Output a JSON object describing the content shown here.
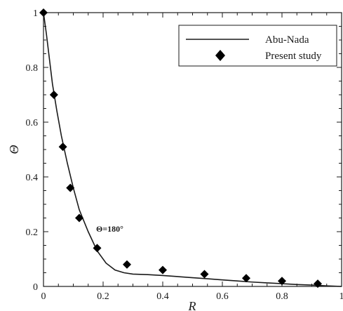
{
  "chart_data": {
    "type": "line",
    "xlabel": "R",
    "ylabel": "Θ",
    "xlim": [
      0,
      1
    ],
    "ylim": [
      0,
      1
    ],
    "x_ticks": [
      "0",
      "0.2",
      "0.4",
      "0.6",
      "0.8",
      "1"
    ],
    "y_ticks": [
      "0",
      "0.2",
      "0.4",
      "0.6",
      "0.8",
      "1"
    ],
    "grid": false,
    "legend_position": "top-right",
    "annotation": "Θ=180°",
    "series": [
      {
        "name": "Abu-Nada",
        "style": "line",
        "color": "#1a1a1a",
        "x": [
          0.0,
          0.01,
          0.02,
          0.03,
          0.045,
          0.06,
          0.08,
          0.1,
          0.12,
          0.15,
          0.18,
          0.21,
          0.24,
          0.27,
          0.3,
          0.35,
          0.4,
          0.45,
          0.5,
          0.55,
          0.6,
          0.65,
          0.7,
          0.75,
          0.8,
          0.85,
          0.9,
          0.95,
          1.0
        ],
        "y": [
          1.0,
          0.92,
          0.83,
          0.74,
          0.64,
          0.55,
          0.45,
          0.36,
          0.28,
          0.2,
          0.13,
          0.085,
          0.06,
          0.05,
          0.045,
          0.043,
          0.04,
          0.036,
          0.032,
          0.028,
          0.024,
          0.02,
          0.016,
          0.013,
          0.01,
          0.007,
          0.005,
          0.002,
          0.0
        ]
      },
      {
        "name": "Present study",
        "style": "marker",
        "marker": "diamond",
        "color": "#000000",
        "x": [
          0.0,
          0.035,
          0.065,
          0.09,
          0.12,
          0.18,
          0.28,
          0.4,
          0.54,
          0.68,
          0.8,
          0.92
        ],
        "y": [
          1.0,
          0.7,
          0.51,
          0.36,
          0.25,
          0.14,
          0.08,
          0.06,
          0.045,
          0.03,
          0.02,
          0.01
        ]
      }
    ]
  }
}
